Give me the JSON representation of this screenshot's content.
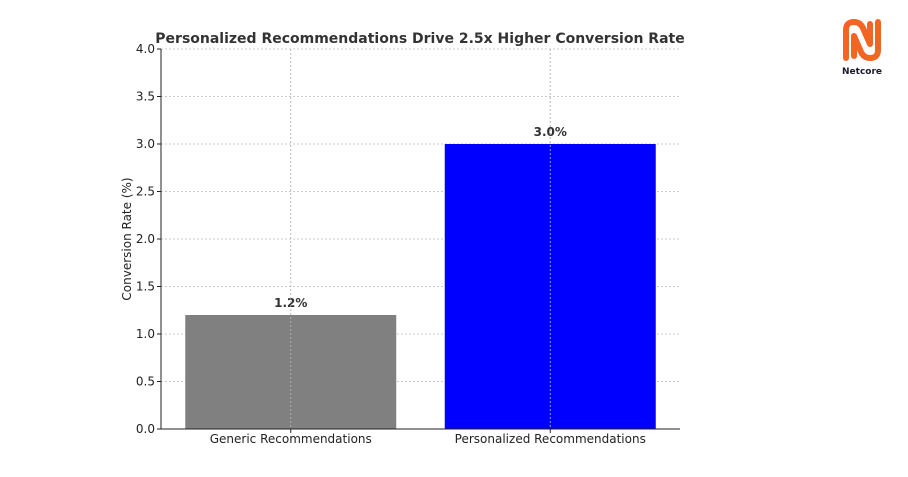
{
  "logo": {
    "name": "Netcore",
    "color": "#f26522"
  },
  "chart_data": {
    "type": "bar",
    "title": "Personalized Recommendations Drive 2.5x Higher Conversion Rate",
    "xlabel": "",
    "ylabel": "Conversion Rate (%)",
    "categories": [
      "Generic Recommendations",
      "Personalized Recommendations"
    ],
    "values": [
      1.2,
      3.0
    ],
    "value_labels": [
      "1.2%",
      "3.0%"
    ],
    "colors": [
      "#808080",
      "#0000ff"
    ],
    "ylim": [
      0,
      4.0
    ],
    "yticks": [
      "0.0",
      "0.5",
      "1.0",
      "1.5",
      "2.0",
      "2.5",
      "3.0",
      "3.5",
      "4.0"
    ],
    "grid": true
  }
}
